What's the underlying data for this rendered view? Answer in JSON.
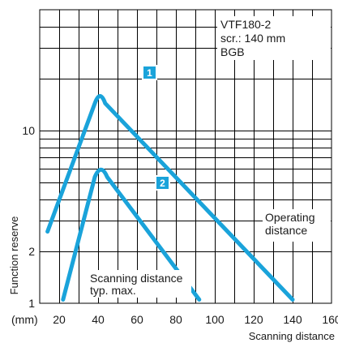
{
  "chart_data": {
    "type": "line",
    "x_unit_label": "(mm)",
    "xlabel": "Scanning distance",
    "ylabel": "Function reserve",
    "x_ticks": [
      20,
      40,
      60,
      80,
      100,
      120,
      140,
      160
    ],
    "y_ticks": [
      1,
      2,
      10
    ],
    "y_scale": "log",
    "xlim": [
      10,
      160
    ],
    "ylim": [
      1,
      50
    ],
    "grid": true,
    "info_lines": [
      "VTF180-2",
      "scr.: 140 mm",
      "BGB"
    ],
    "series": [
      {
        "name": "1",
        "points": [
          [
            14,
            2.6
          ],
          [
            40,
            16
          ],
          [
            42,
            16
          ],
          [
            140,
            1.05
          ]
        ]
      },
      {
        "name": "2",
        "points": [
          [
            22,
            1.05
          ],
          [
            40,
            6
          ],
          [
            43,
            6
          ],
          [
            92,
            1.05
          ]
        ]
      }
    ],
    "annotations": [
      {
        "lines": [
          "Operating",
          "distance"
        ]
      },
      {
        "lines": [
          "Scanning distance",
          "typ. max."
        ]
      }
    ]
  },
  "colors": {
    "curve": "#1aa3da",
    "badge": "#1aa3da"
  }
}
